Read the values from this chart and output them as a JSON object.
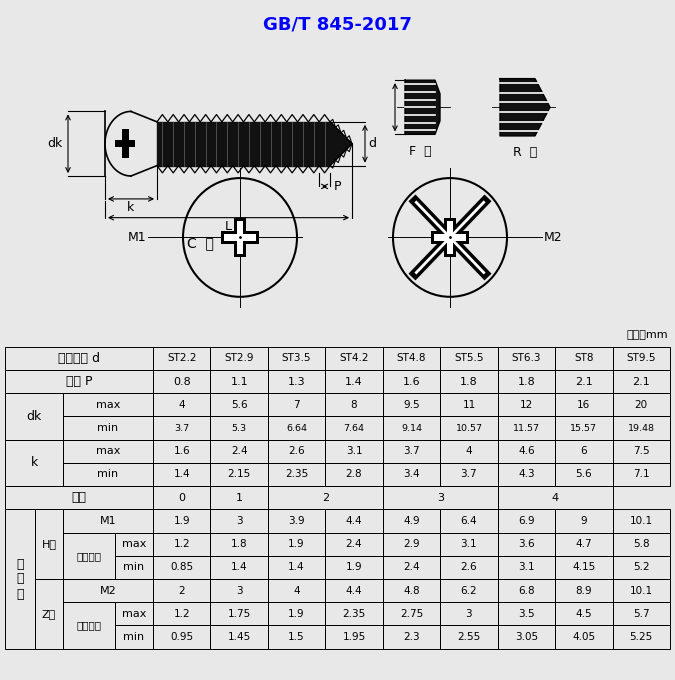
{
  "title": "GB/T 845-2017",
  "title_color": "#0000FF",
  "bg_color": "#e8e8e8",
  "unit_label": "单位：mm",
  "col_headers": [
    "ST2.2",
    "ST2.9",
    "ST3.5",
    "ST4.2",
    "ST4.8",
    "ST5.5",
    "ST6.3",
    "ST8",
    "ST9.5"
  ],
  "pitch_row": [
    "0.8",
    "1.1",
    "1.3",
    "1.4",
    "1.6",
    "1.8",
    "1.8",
    "2.1",
    "2.1"
  ],
  "dk_max": [
    "4",
    "5.6",
    "7",
    "8",
    "9.5",
    "11",
    "12",
    "16",
    "20"
  ],
  "dk_min": [
    "3.7",
    "5.3",
    "6.64",
    "7.64",
    "9.14",
    "10.57",
    "11.57",
    "15.57",
    "19.48"
  ],
  "k_max": [
    "1.6",
    "2.4",
    "2.6",
    "3.1",
    "3.7",
    "4",
    "4.6",
    "6",
    "7.5"
  ],
  "k_min": [
    "1.4",
    "2.15",
    "2.35",
    "2.8",
    "3.4",
    "3.7",
    "4.3",
    "5.6",
    "7.1"
  ],
  "slot_vals": [
    [
      "0",
      1
    ],
    [
      "1",
      1
    ],
    [
      "2",
      2
    ],
    [
      "3",
      2
    ],
    [
      "4",
      2
    ]
  ],
  "H_M1": [
    "1.9",
    "3",
    "3.9",
    "4.4",
    "4.9",
    "6.4",
    "6.9",
    "9",
    "10.1"
  ],
  "H_max": [
    "1.2",
    "1.8",
    "1.9",
    "2.4",
    "2.9",
    "3.1",
    "3.6",
    "4.7",
    "5.8"
  ],
  "H_min": [
    "0.85",
    "1.4",
    "1.4",
    "1.9",
    "2.4",
    "2.6",
    "3.1",
    "4.15",
    "5.2"
  ],
  "Z_M2": [
    "2",
    "3",
    "4",
    "4.4",
    "4.8",
    "6.2",
    "6.8",
    "8.9",
    "10.1"
  ],
  "Z_max": [
    "1.2",
    "1.75",
    "1.9",
    "2.35",
    "2.75",
    "3",
    "3.5",
    "4.5",
    "5.7"
  ],
  "Z_min": [
    "0.95",
    "1.45",
    "1.5",
    "1.95",
    "2.3",
    "2.55",
    "3.05",
    "4.05",
    "5.25"
  ]
}
